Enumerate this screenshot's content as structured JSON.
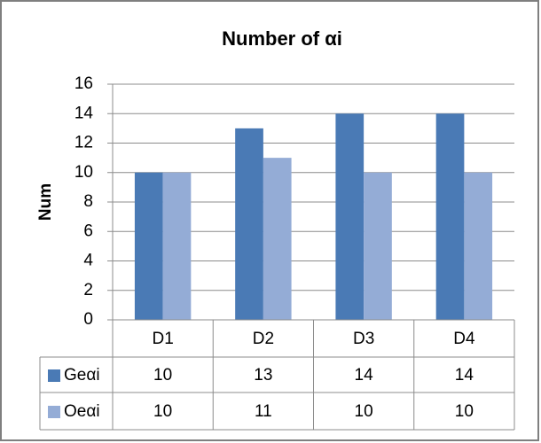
{
  "chart_data": {
    "type": "bar",
    "title": "Number of αi",
    "y_label": "Num",
    "categories": [
      "D1",
      "D2",
      "D3",
      "D4"
    ],
    "series": [
      {
        "name": "Geαi",
        "color": "#4a7ab5",
        "values": [
          10,
          13,
          14,
          14
        ]
      },
      {
        "name": "Oeαi",
        "color": "#94acd6",
        "values": [
          10,
          11,
          10,
          10
        ]
      }
    ],
    "ylim": [
      0,
      16
    ],
    "yticks": [
      0,
      2,
      4,
      6,
      8,
      10,
      12,
      14,
      16
    ],
    "grid": true,
    "data_table": true
  }
}
